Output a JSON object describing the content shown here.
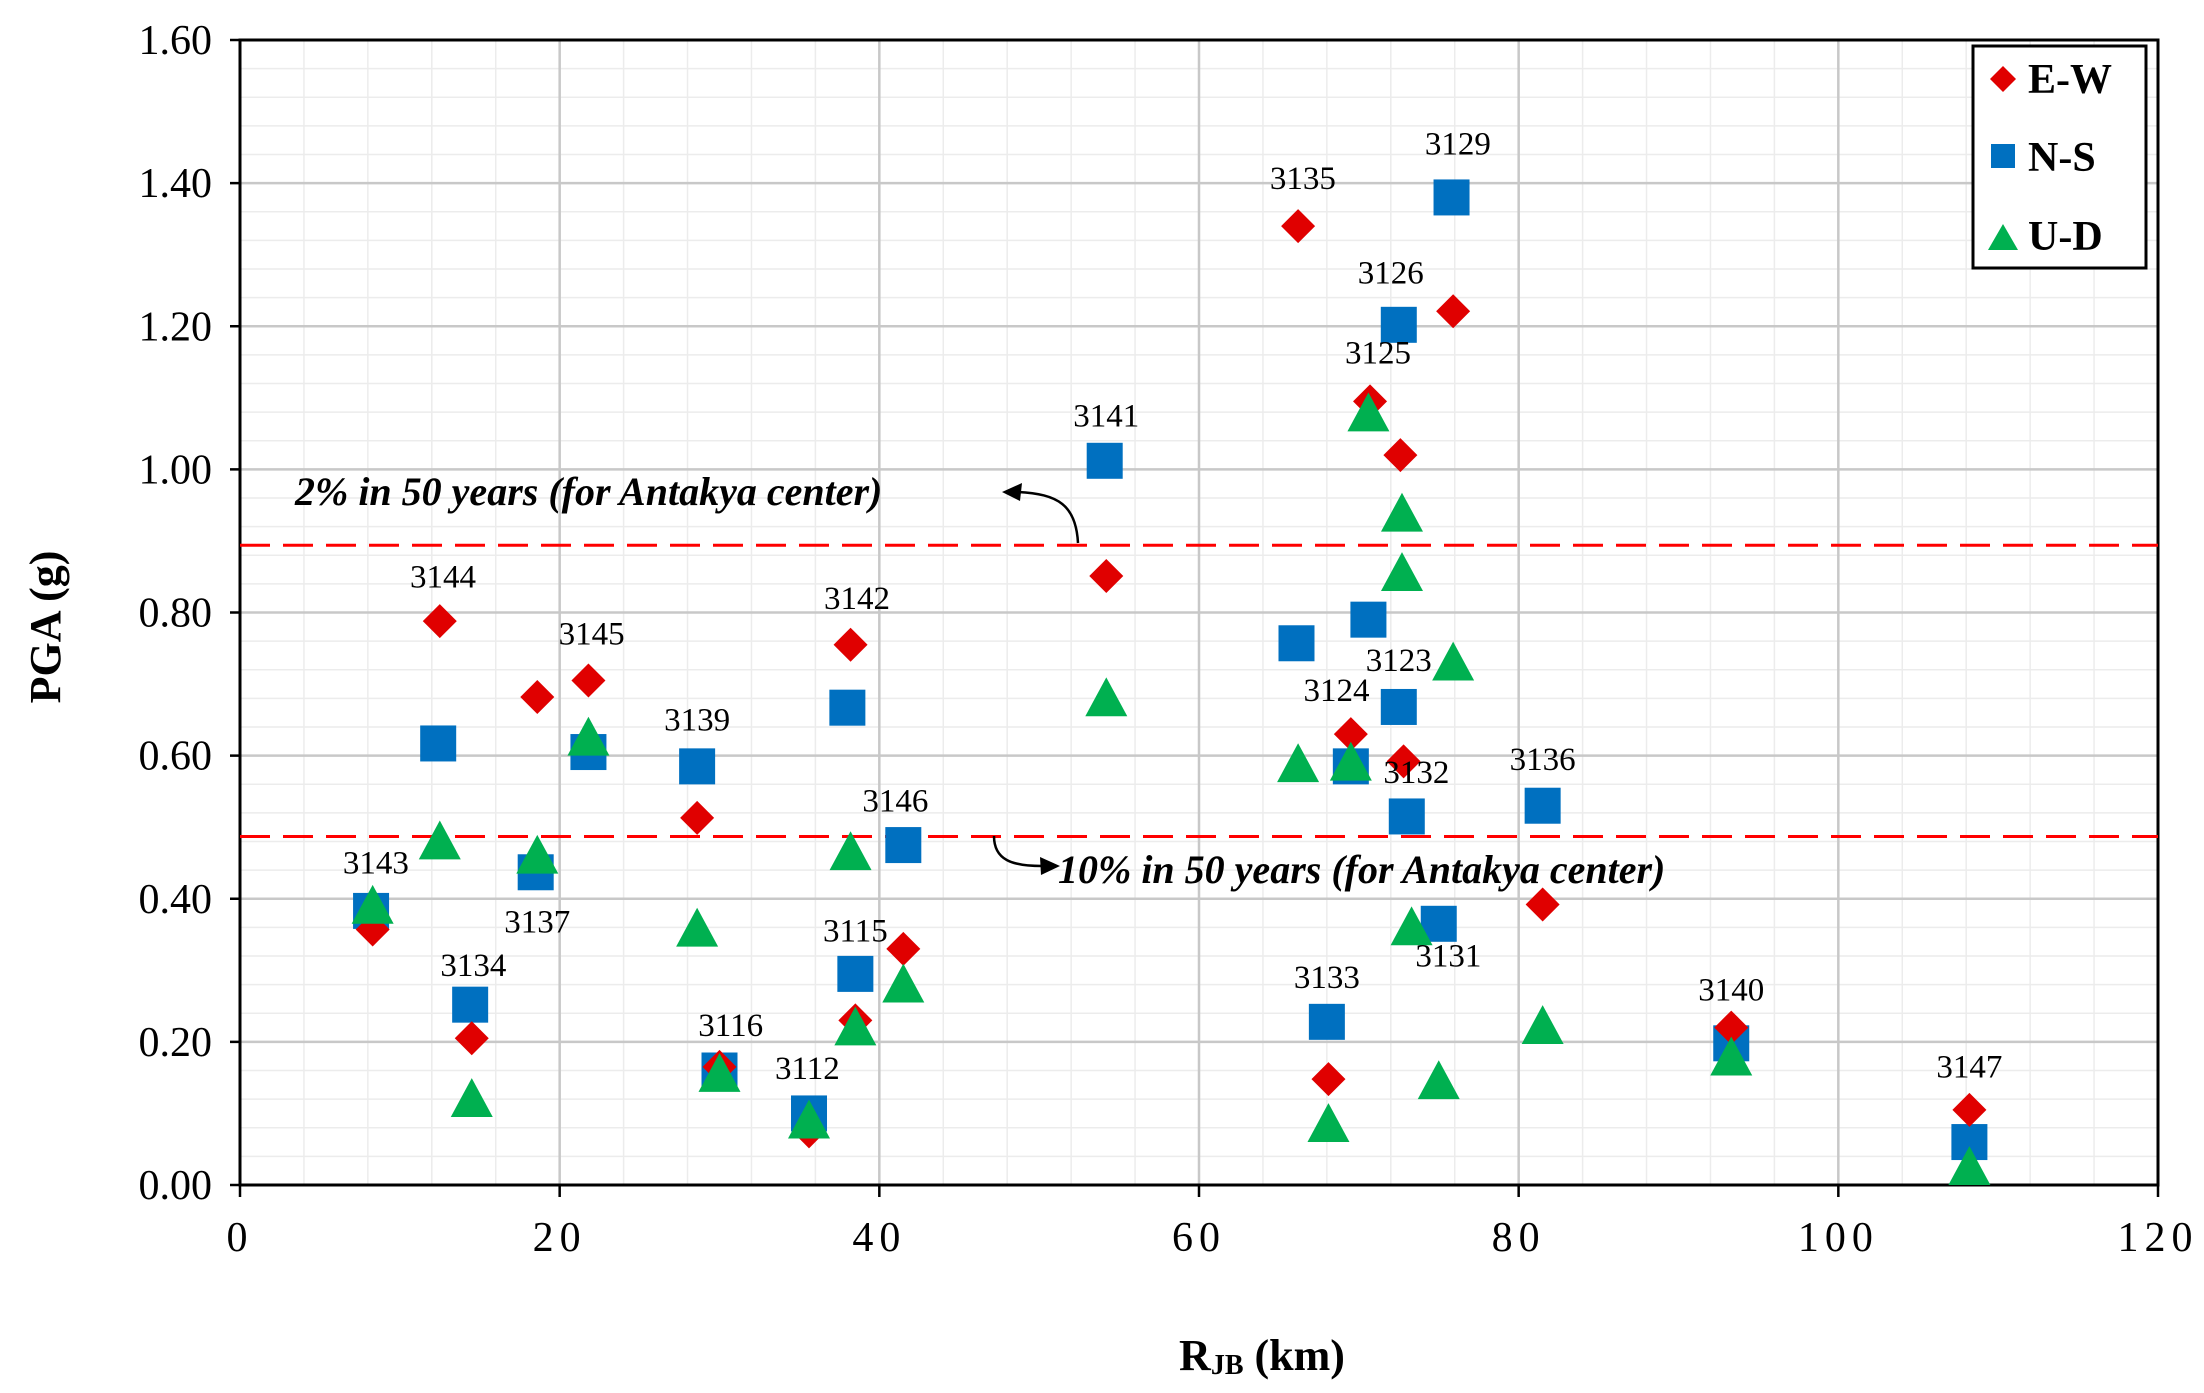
{
  "chart_data": {
    "type": "scatter",
    "title": "",
    "xlabel": "RJB (km)",
    "xlabel_main": "R",
    "xlabel_sub": "JB",
    "xlabel_unit": " (km)",
    "ylabel": "PGA (g)",
    "xlim": [
      0,
      120
    ],
    "ylim": [
      0,
      1.6
    ],
    "x_ticks": [
      0,
      20,
      40,
      60,
      80,
      100,
      120
    ],
    "x_tick_labels": [
      "0",
      "20",
      "40",
      "60",
      "80",
      "100",
      "120"
    ],
    "y_ticks": [
      0,
      0.2,
      0.4,
      0.6,
      0.8,
      1.0,
      1.2,
      1.4,
      1.6
    ],
    "y_tick_labels": [
      "0.00",
      "0.20",
      "0.40",
      "0.60",
      "0.80",
      "1.00",
      "1.20",
      "1.40",
      "1.60"
    ],
    "grid": true,
    "legend_position": "top-right",
    "series": [
      {
        "name": "E-W",
        "marker": "diamond",
        "color": "#e00000",
        "x": [
          8.3,
          12.5,
          14.5,
          18.6,
          21.8,
          28.6,
          30.0,
          35.6,
          38.2,
          38.5,
          41.5,
          54.2,
          66.2,
          68.1,
          69.5,
          70.7,
          72.6,
          72.8,
          75.9,
          81.5,
          93.3,
          108.2
        ],
        "y": [
          0.357,
          0.788,
          0.205,
          0.682,
          0.705,
          0.513,
          0.165,
          0.075,
          0.755,
          0.23,
          0.33,
          0.851,
          1.34,
          0.148,
          0.63,
          1.095,
          1.02,
          0.592,
          1.221,
          0.392,
          0.22,
          0.105
        ]
      },
      {
        "name": "N-S",
        "marker": "square",
        "color": "#0070c0",
        "x": [
          8.2,
          12.4,
          14.4,
          18.5,
          21.8,
          28.6,
          30.0,
          35.6,
          38.0,
          38.5,
          41.5,
          54.1,
          66.1,
          68.0,
          69.5,
          70.6,
          72.5,
          72.5,
          73.0,
          75.0,
          75.8,
          81.5,
          93.3,
          108.2
        ],
        "y": [
          0.383,
          0.617,
          0.252,
          0.437,
          0.605,
          0.585,
          0.16,
          0.1,
          0.667,
          0.295,
          0.475,
          1.012,
          0.757,
          0.228,
          0.585,
          0.79,
          1.202,
          0.668,
          0.515,
          0.365,
          1.38,
          0.53,
          0.198,
          0.06
        ]
      },
      {
        "name": "U-D",
        "marker": "triangle",
        "color": "#00b050",
        "x": [
          8.3,
          12.5,
          14.5,
          18.6,
          21.8,
          28.6,
          30.0,
          35.6,
          38.2,
          38.5,
          41.5,
          54.2,
          66.2,
          68.1,
          69.5,
          70.6,
          72.7,
          72.7,
          73.3,
          75.0,
          75.9,
          81.5,
          93.3,
          108.2
        ],
        "y": [
          0.39,
          0.48,
          0.12,
          0.46,
          0.625,
          0.358,
          0.155,
          0.09,
          0.465,
          0.22,
          0.28,
          0.68,
          0.588,
          0.085,
          0.59,
          1.078,
          0.938,
          0.855,
          0.36,
          0.145,
          0.73,
          0.222,
          0.178,
          0.025
        ]
      }
    ],
    "reference_lines": [
      {
        "y": 0.894,
        "label": "2% in 50  years  (for Antakya center)",
        "color": "#ff0000"
      },
      {
        "y": 0.487,
        "label": "10% in 50  years  (for Antakya center)",
        "color": "#ff0000"
      }
    ],
    "station_labels": [
      {
        "text": "3143",
        "x": 8.5,
        "y": 0.435
      },
      {
        "text": "3144",
        "x": 12.7,
        "y": 0.835
      },
      {
        "text": "3134",
        "x": 14.6,
        "y": 0.292
      },
      {
        "text": "3137",
        "x": 18.6,
        "y": 0.353
      },
      {
        "text": "3145",
        "x": 22.0,
        "y": 0.755
      },
      {
        "text": "3139",
        "x": 28.6,
        "y": 0.635
      },
      {
        "text": "3116",
        "x": 30.7,
        "y": 0.208
      },
      {
        "text": "3112",
        "x": 35.5,
        "y": 0.148
      },
      {
        "text": "3142",
        "x": 38.6,
        "y": 0.805
      },
      {
        "text": "3115",
        "x": 38.5,
        "y": 0.34
      },
      {
        "text": "3146",
        "x": 41.0,
        "y": 0.522
      },
      {
        "text": "3141",
        "x": 54.2,
        "y": 1.06
      },
      {
        "text": "3135",
        "x": 66.5,
        "y": 1.392
      },
      {
        "text": "3133",
        "x": 68.0,
        "y": 0.275
      },
      {
        "text": "3124",
        "x": 68.6,
        "y": 0.676
      },
      {
        "text": "3125",
        "x": 71.2,
        "y": 1.148
      },
      {
        "text": "3126",
        "x": 72.0,
        "y": 1.26
      },
      {
        "text": "3123",
        "x": 72.5,
        "y": 0.718
      },
      {
        "text": "3132",
        "x": 73.6,
        "y": 0.562
      },
      {
        "text": "3131",
        "x": 75.6,
        "y": 0.305
      },
      {
        "text": "3129",
        "x": 76.2,
        "y": 1.44
      },
      {
        "text": "3136",
        "x": 81.5,
        "y": 0.58
      },
      {
        "text": "3140",
        "x": 93.3,
        "y": 0.258
      },
      {
        "text": "3147",
        "x": 108.2,
        "y": 0.15
      }
    ]
  }
}
